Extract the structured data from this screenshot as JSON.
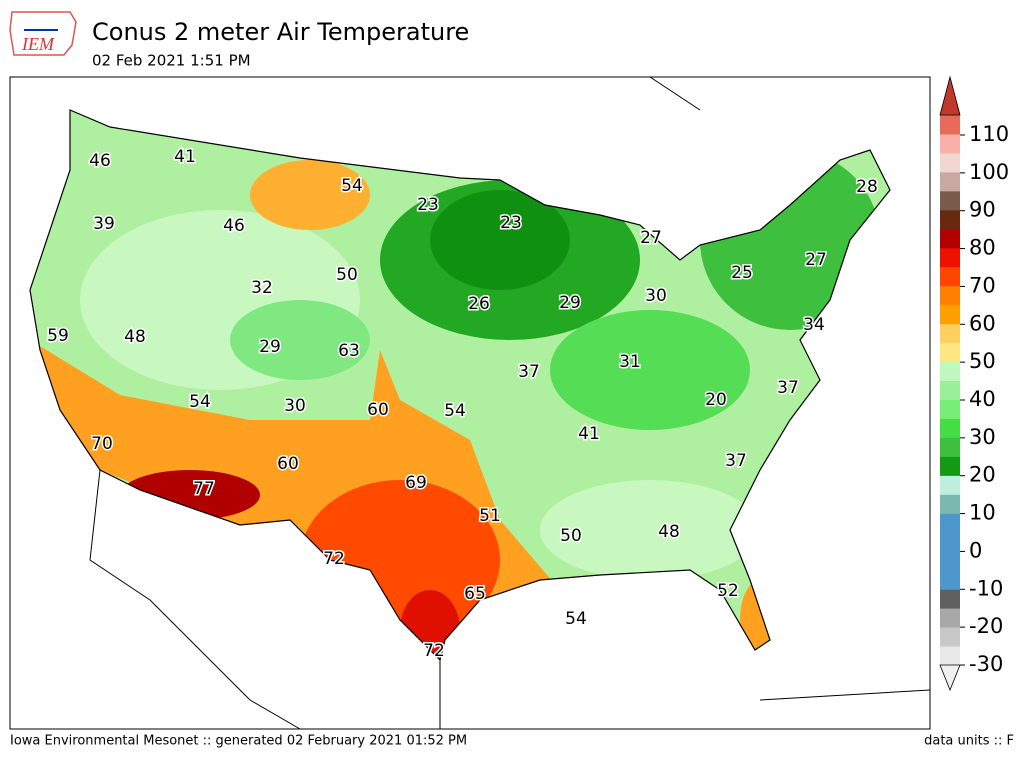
{
  "header": {
    "logo": "IEM",
    "title": "Conus 2 meter Air Temperature",
    "subtitle": "02 Feb 2021 1:51 PM"
  },
  "map": {
    "labels": [
      46,
      41,
      54,
      23,
      23,
      28,
      39,
      46,
      27,
      27,
      50,
      25,
      32,
      26,
      29,
      30,
      34,
      59,
      48,
      29,
      63,
      31,
      37,
      37,
      54,
      30,
      60,
      54,
      20,
      41,
      70,
      37,
      60,
      69,
      77,
      51,
      50,
      48,
      72,
      52,
      65,
      54,
      72
    ]
  },
  "colorbar": {
    "ticks": [
      -30,
      -20,
      -10,
      0,
      10,
      20,
      30,
      40,
      50,
      60,
      70,
      80,
      90,
      100,
      110
    ],
    "colors": [
      "#e8e8e8",
      "#c8c8c8",
      "#a8a8a8",
      "#606060",
      "#4d97cc",
      "#4d97cc",
      "#4d97cc",
      "#4d97cc",
      "#7bb8b0",
      "#bfeedd",
      "#139a13",
      "#3ec03e",
      "#44dd44",
      "#77ee77",
      "#99f099",
      "#c0f8c0",
      "#ffe680",
      "#ffd060",
      "#ff9f00",
      "#ff7f00",
      "#ff4500",
      "#ee1100",
      "#b00000",
      "#6b2810",
      "#7a5a48",
      "#c8a8a0",
      "#f0d8d0",
      "#f8b0a8",
      "#e86a5a"
    ]
  },
  "footer": {
    "left": "Iowa Environmental Mesonet :: generated 02 February 2021 01:52 PM",
    "right": "data units :: F"
  }
}
